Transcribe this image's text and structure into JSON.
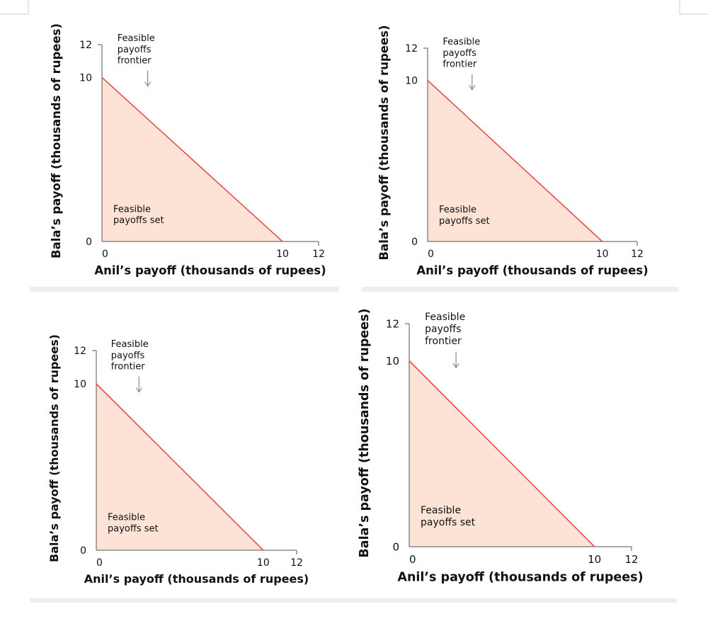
{
  "colors": {
    "frontier_line": "#e05050",
    "set_fill": "#fde3d6",
    "axis": "#555555",
    "arrow": "#888888",
    "separator": "#eeeeee"
  },
  "chart_data": [
    {
      "type": "area",
      "title": "",
      "xlabel": "Anil’s payoff (thousands of rupees)",
      "ylabel": "Bala’s payoff (thousands of rupees)",
      "xlim": [
        0,
        12
      ],
      "ylim": [
        0,
        12
      ],
      "x_ticks": [
        "0",
        "10",
        "12"
      ],
      "y_ticks": [
        "0",
        "10",
        "12"
      ],
      "frontier": [
        [
          0,
          10
        ],
        [
          10,
          0
        ]
      ],
      "annotations": {
        "frontier": [
          "Feasible",
          "payoffs",
          "frontier"
        ],
        "set": [
          "Feasible",
          "payoffs set"
        ]
      }
    },
    {
      "type": "area",
      "title": "",
      "xlabel": "Anil’s payoff (thousands of rupees)",
      "ylabel": "Bala’s payoff (thousands of rupees)",
      "xlim": [
        0,
        12
      ],
      "ylim": [
        0,
        12
      ],
      "x_ticks": [
        "0",
        "10",
        "12"
      ],
      "y_ticks": [
        "0",
        "10",
        "12"
      ],
      "frontier": [
        [
          0,
          10
        ],
        [
          10,
          0
        ]
      ],
      "annotations": {
        "frontier": [
          "Feasible",
          "payoffs",
          "frontier"
        ],
        "set": [
          "Feasible",
          "payoffs set"
        ]
      }
    },
    {
      "type": "area",
      "title": "",
      "xlabel": "Anil’s payoff (thousands of rupees)",
      "ylabel": "Bala’s payoff (thousands of rupees)",
      "xlim": [
        0,
        12
      ],
      "ylim": [
        0,
        12
      ],
      "x_ticks": [
        "0",
        "10",
        "12"
      ],
      "y_ticks": [
        "0",
        "10",
        "12"
      ],
      "frontier": [
        [
          0,
          10
        ],
        [
          10,
          0
        ]
      ],
      "annotations": {
        "frontier": [
          "Feasible",
          "payoffs",
          "frontier"
        ],
        "set": [
          "Feasible",
          "payoffs set"
        ]
      }
    },
    {
      "type": "area",
      "title": "",
      "xlabel": "Anil’s payoff (thousands of rupees)",
      "ylabel": "Bala’s payoff (thousands of rupees)",
      "xlim": [
        0,
        12
      ],
      "ylim": [
        0,
        12
      ],
      "x_ticks": [
        "0",
        "10",
        "12"
      ],
      "y_ticks": [
        "0",
        "10",
        "12"
      ],
      "frontier": [
        [
          0,
          10
        ],
        [
          10,
          0
        ]
      ],
      "annotations": {
        "frontier": [
          "Feasible",
          "payoffs",
          "frontier"
        ],
        "set": [
          "Feasible",
          "payoffs set"
        ]
      }
    }
  ]
}
